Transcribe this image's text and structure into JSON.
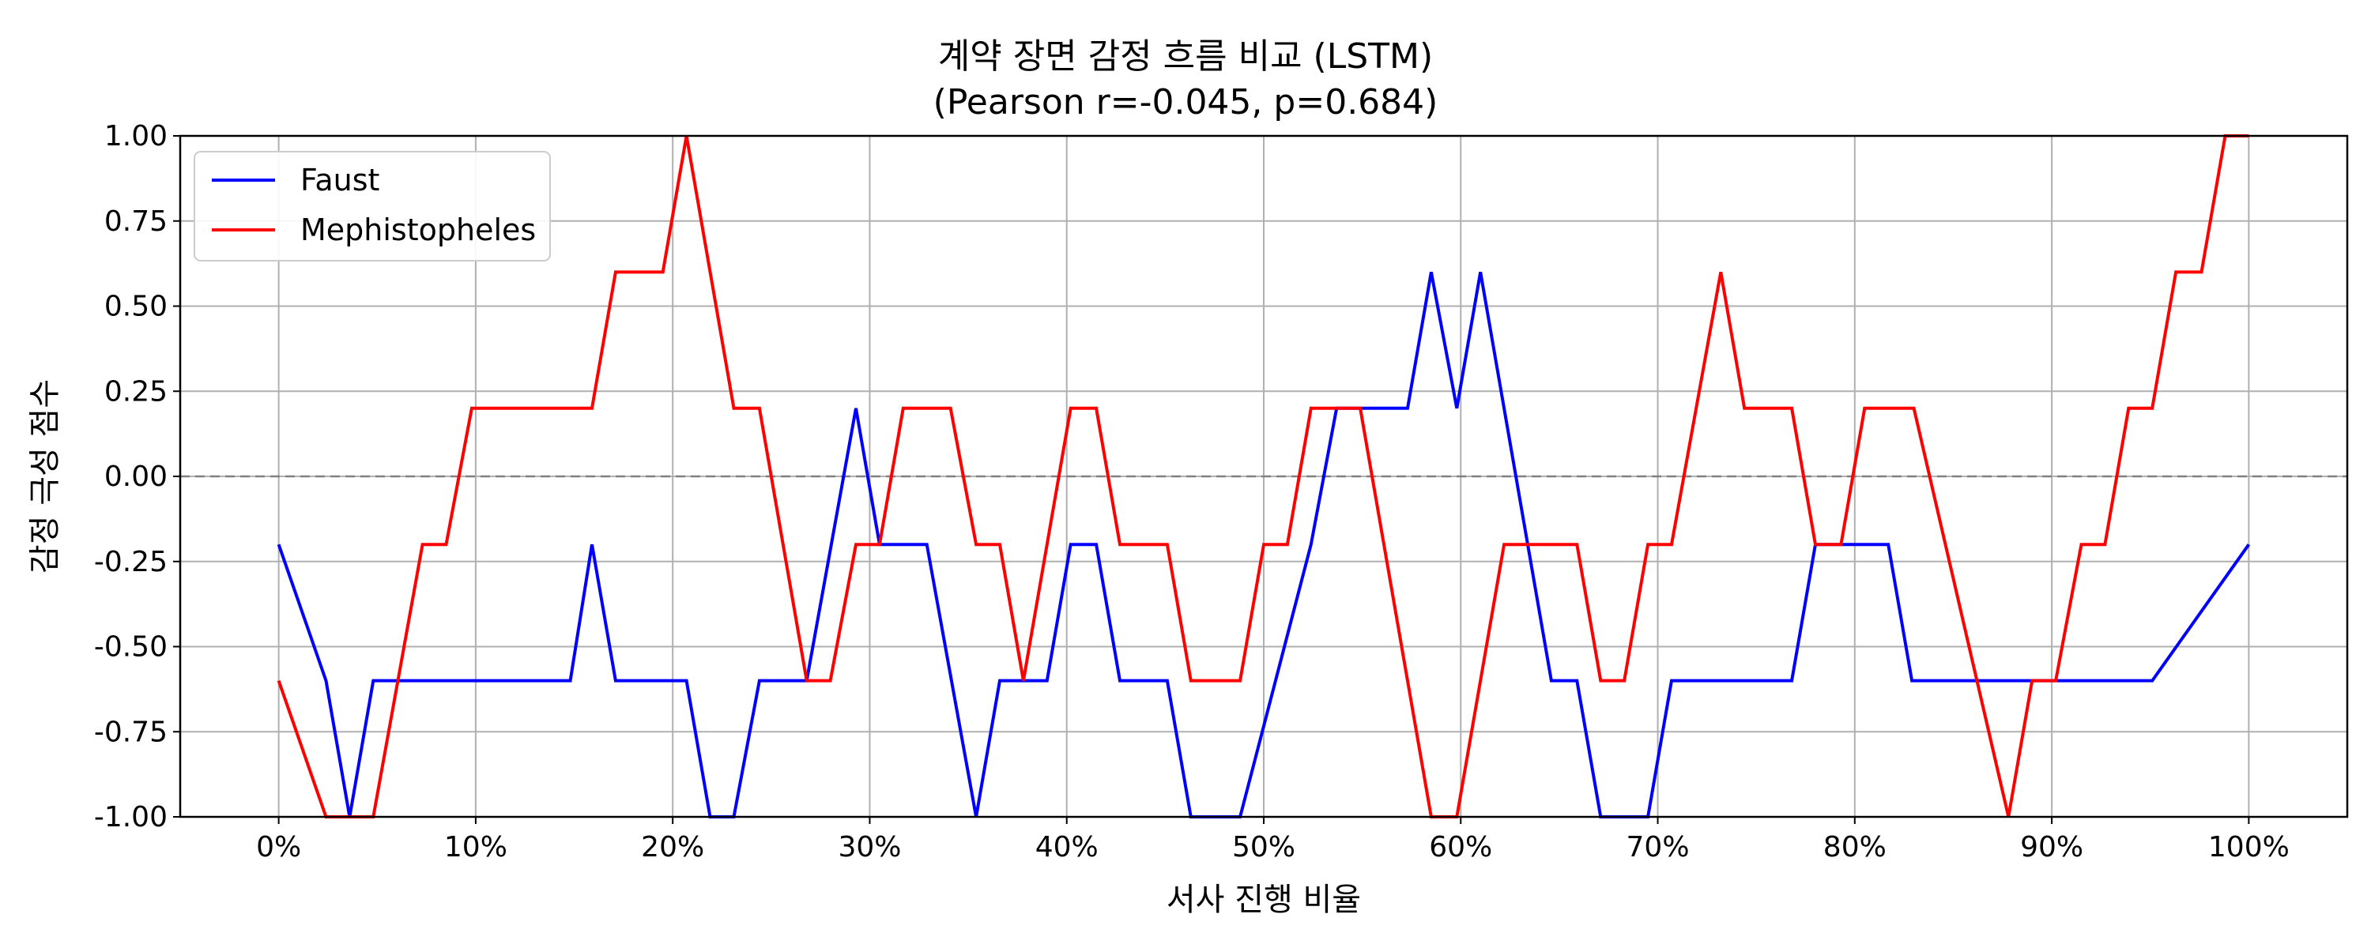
{
  "chart_data": {
    "type": "line",
    "title": "계약 장면 감정 흐름 비교 (LSTM)",
    "subtitle": "(Pearson r=-0.045, p=0.684)",
    "xlabel": "서사 진행 비율",
    "ylabel": "감정 극성 점수",
    "xlim": [
      -5,
      105
    ],
    "ylim": [
      -1.0,
      1.0
    ],
    "x_ticks": [
      0,
      10,
      20,
      30,
      40,
      50,
      60,
      70,
      80,
      90,
      100
    ],
    "x_tick_labels": [
      "0%",
      "10%",
      "20%",
      "30%",
      "40%",
      "50%",
      "60%",
      "70%",
      "80%",
      "90%",
      "100%"
    ],
    "y_ticks": [
      -1.0,
      -0.75,
      -0.5,
      -0.25,
      0.0,
      0.25,
      0.5,
      0.75,
      1.0
    ],
    "y_tick_labels": [
      "-1.00",
      "-0.75",
      "-0.50",
      "-0.25",
      "0.00",
      "0.25",
      "0.50",
      "0.75",
      "1.00"
    ],
    "grid": true,
    "reference_line": {
      "y": 0,
      "style": "dashed",
      "color": "#808080"
    },
    "legend_position": "top-left",
    "series": [
      {
        "name": "Faust",
        "color": "#0000ff",
        "x": [
          0,
          2.4,
          3.6,
          4.8,
          6.0,
          14.8,
          15.9,
          17.1,
          20.7,
          21.9,
          23.1,
          24.4,
          26.8,
          29.3,
          30.5,
          32.9,
          35.4,
          36.6,
          39.0,
          40.2,
          41.5,
          42.7,
          45.1,
          46.3,
          48.8,
          52.4,
          53.7,
          57.3,
          58.5,
          59.8,
          61.0,
          64.6,
          65.9,
          67.1,
          69.5,
          70.7,
          76.8,
          78.0,
          81.7,
          82.9,
          95.1,
          100
        ],
        "y": [
          -0.2,
          -0.6,
          -1.0,
          -0.6,
          -0.6,
          -0.6,
          -0.2,
          -0.6,
          -0.6,
          -1.0,
          -1.0,
          -0.6,
          -0.6,
          0.2,
          -0.2,
          -0.2,
          -1.0,
          -0.6,
          -0.6,
          -0.2,
          -0.2,
          -0.6,
          -0.6,
          -1.0,
          -1.0,
          -0.2,
          0.2,
          0.2,
          0.6,
          0.2,
          0.6,
          -0.6,
          -0.6,
          -1.0,
          -1.0,
          -0.6,
          -0.6,
          -0.2,
          -0.2,
          -0.6,
          -0.6,
          -0.2
        ]
      },
      {
        "name": "Mephistopheles",
        "color": "#ff0000",
        "x": [
          0,
          2.4,
          4.8,
          7.3,
          8.5,
          9.8,
          15.9,
          17.1,
          19.5,
          20.7,
          23.1,
          24.4,
          26.8,
          28.0,
          29.3,
          30.5,
          31.7,
          34.1,
          35.4,
          36.6,
          37.8,
          40.2,
          41.5,
          42.7,
          45.1,
          46.3,
          48.8,
          50.0,
          51.2,
          52.4,
          54.9,
          58.5,
          59.8,
          62.2,
          65.9,
          67.1,
          68.3,
          69.5,
          70.7,
          73.2,
          74.4,
          76.8,
          78.0,
          79.3,
          80.5,
          83.0,
          87.8,
          89.0,
          90.2,
          91.5,
          92.7,
          93.9,
          95.1,
          96.3,
          97.6,
          98.8,
          100
        ],
        "y": [
          -0.6,
          -1.0,
          -1.0,
          -0.2,
          -0.2,
          0.2,
          0.2,
          0.6,
          0.6,
          1.0,
          0.2,
          0.2,
          -0.6,
          -0.6,
          -0.2,
          -0.2,
          0.2,
          0.2,
          -0.2,
          -0.2,
          -0.6,
          0.2,
          0.2,
          -0.2,
          -0.2,
          -0.6,
          -0.6,
          -0.2,
          -0.2,
          0.2,
          0.2,
          -1.0,
          -1.0,
          -0.2,
          -0.2,
          -0.6,
          -0.6,
          -0.2,
          -0.2,
          0.6,
          0.2,
          0.2,
          -0.2,
          -0.2,
          0.2,
          0.2,
          -1.0,
          -0.6,
          -0.6,
          -0.2,
          -0.2,
          0.2,
          0.2,
          0.6,
          0.6,
          1.0,
          1.0
        ]
      }
    ]
  }
}
